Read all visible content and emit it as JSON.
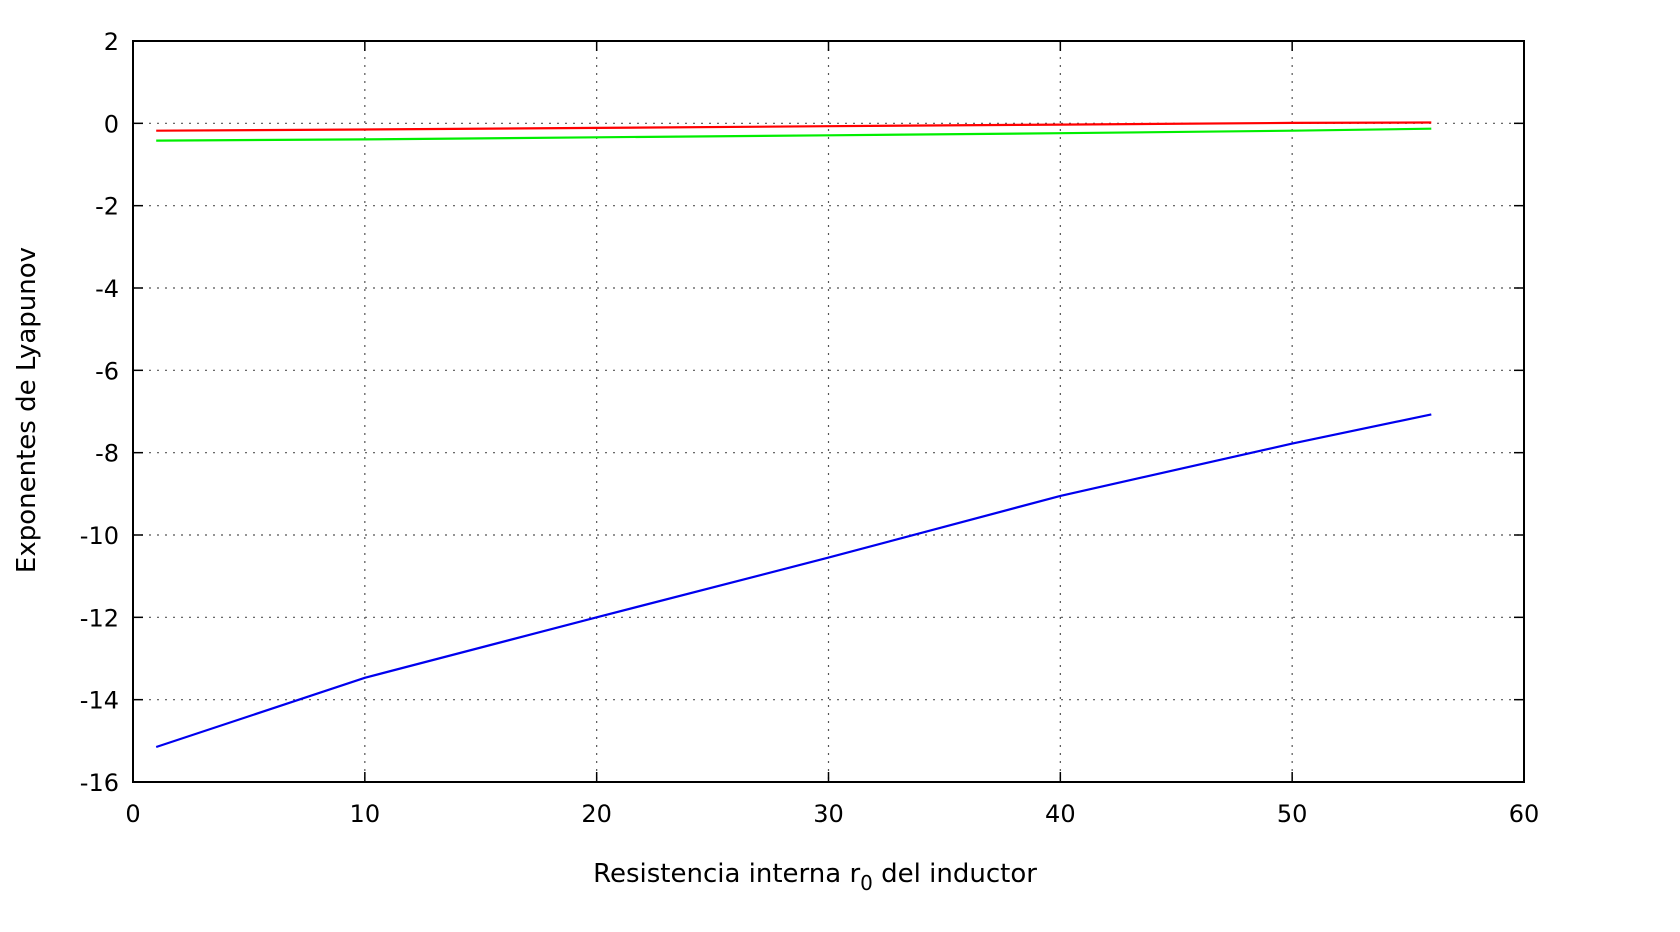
{
  "chart_data": {
    "type": "line",
    "xlabel": "Resistencia interna r0 del inductor",
    "xlabel_parts": {
      "before": "Resistencia interna r",
      "sub": "0",
      "after": " del inductor"
    },
    "ylabel": "Exponentes de Lyapunov",
    "xlim": [
      0,
      60
    ],
    "ylim": [
      -16,
      2
    ],
    "xticks": [
      0,
      10,
      20,
      30,
      40,
      50,
      60
    ],
    "yticks": [
      2,
      0,
      -2,
      -4,
      -6,
      -8,
      -10,
      -12,
      -14,
      -16
    ],
    "grid": true,
    "x": [
      1,
      10,
      20,
      30,
      40,
      50,
      56
    ],
    "series": [
      {
        "color": "#ff0000",
        "values": [
          -0.18,
          -0.15,
          -0.11,
          -0.07,
          -0.03,
          0.01,
          0.02
        ]
      },
      {
        "color": "#00ee00",
        "values": [
          -0.42,
          -0.39,
          -0.34,
          -0.29,
          -0.24,
          -0.18,
          -0.13
        ]
      },
      {
        "color": "#0000ee",
        "values": [
          -15.15,
          -13.47,
          -12.0,
          -10.55,
          -9.05,
          -7.78,
          -7.07
        ]
      }
    ]
  }
}
